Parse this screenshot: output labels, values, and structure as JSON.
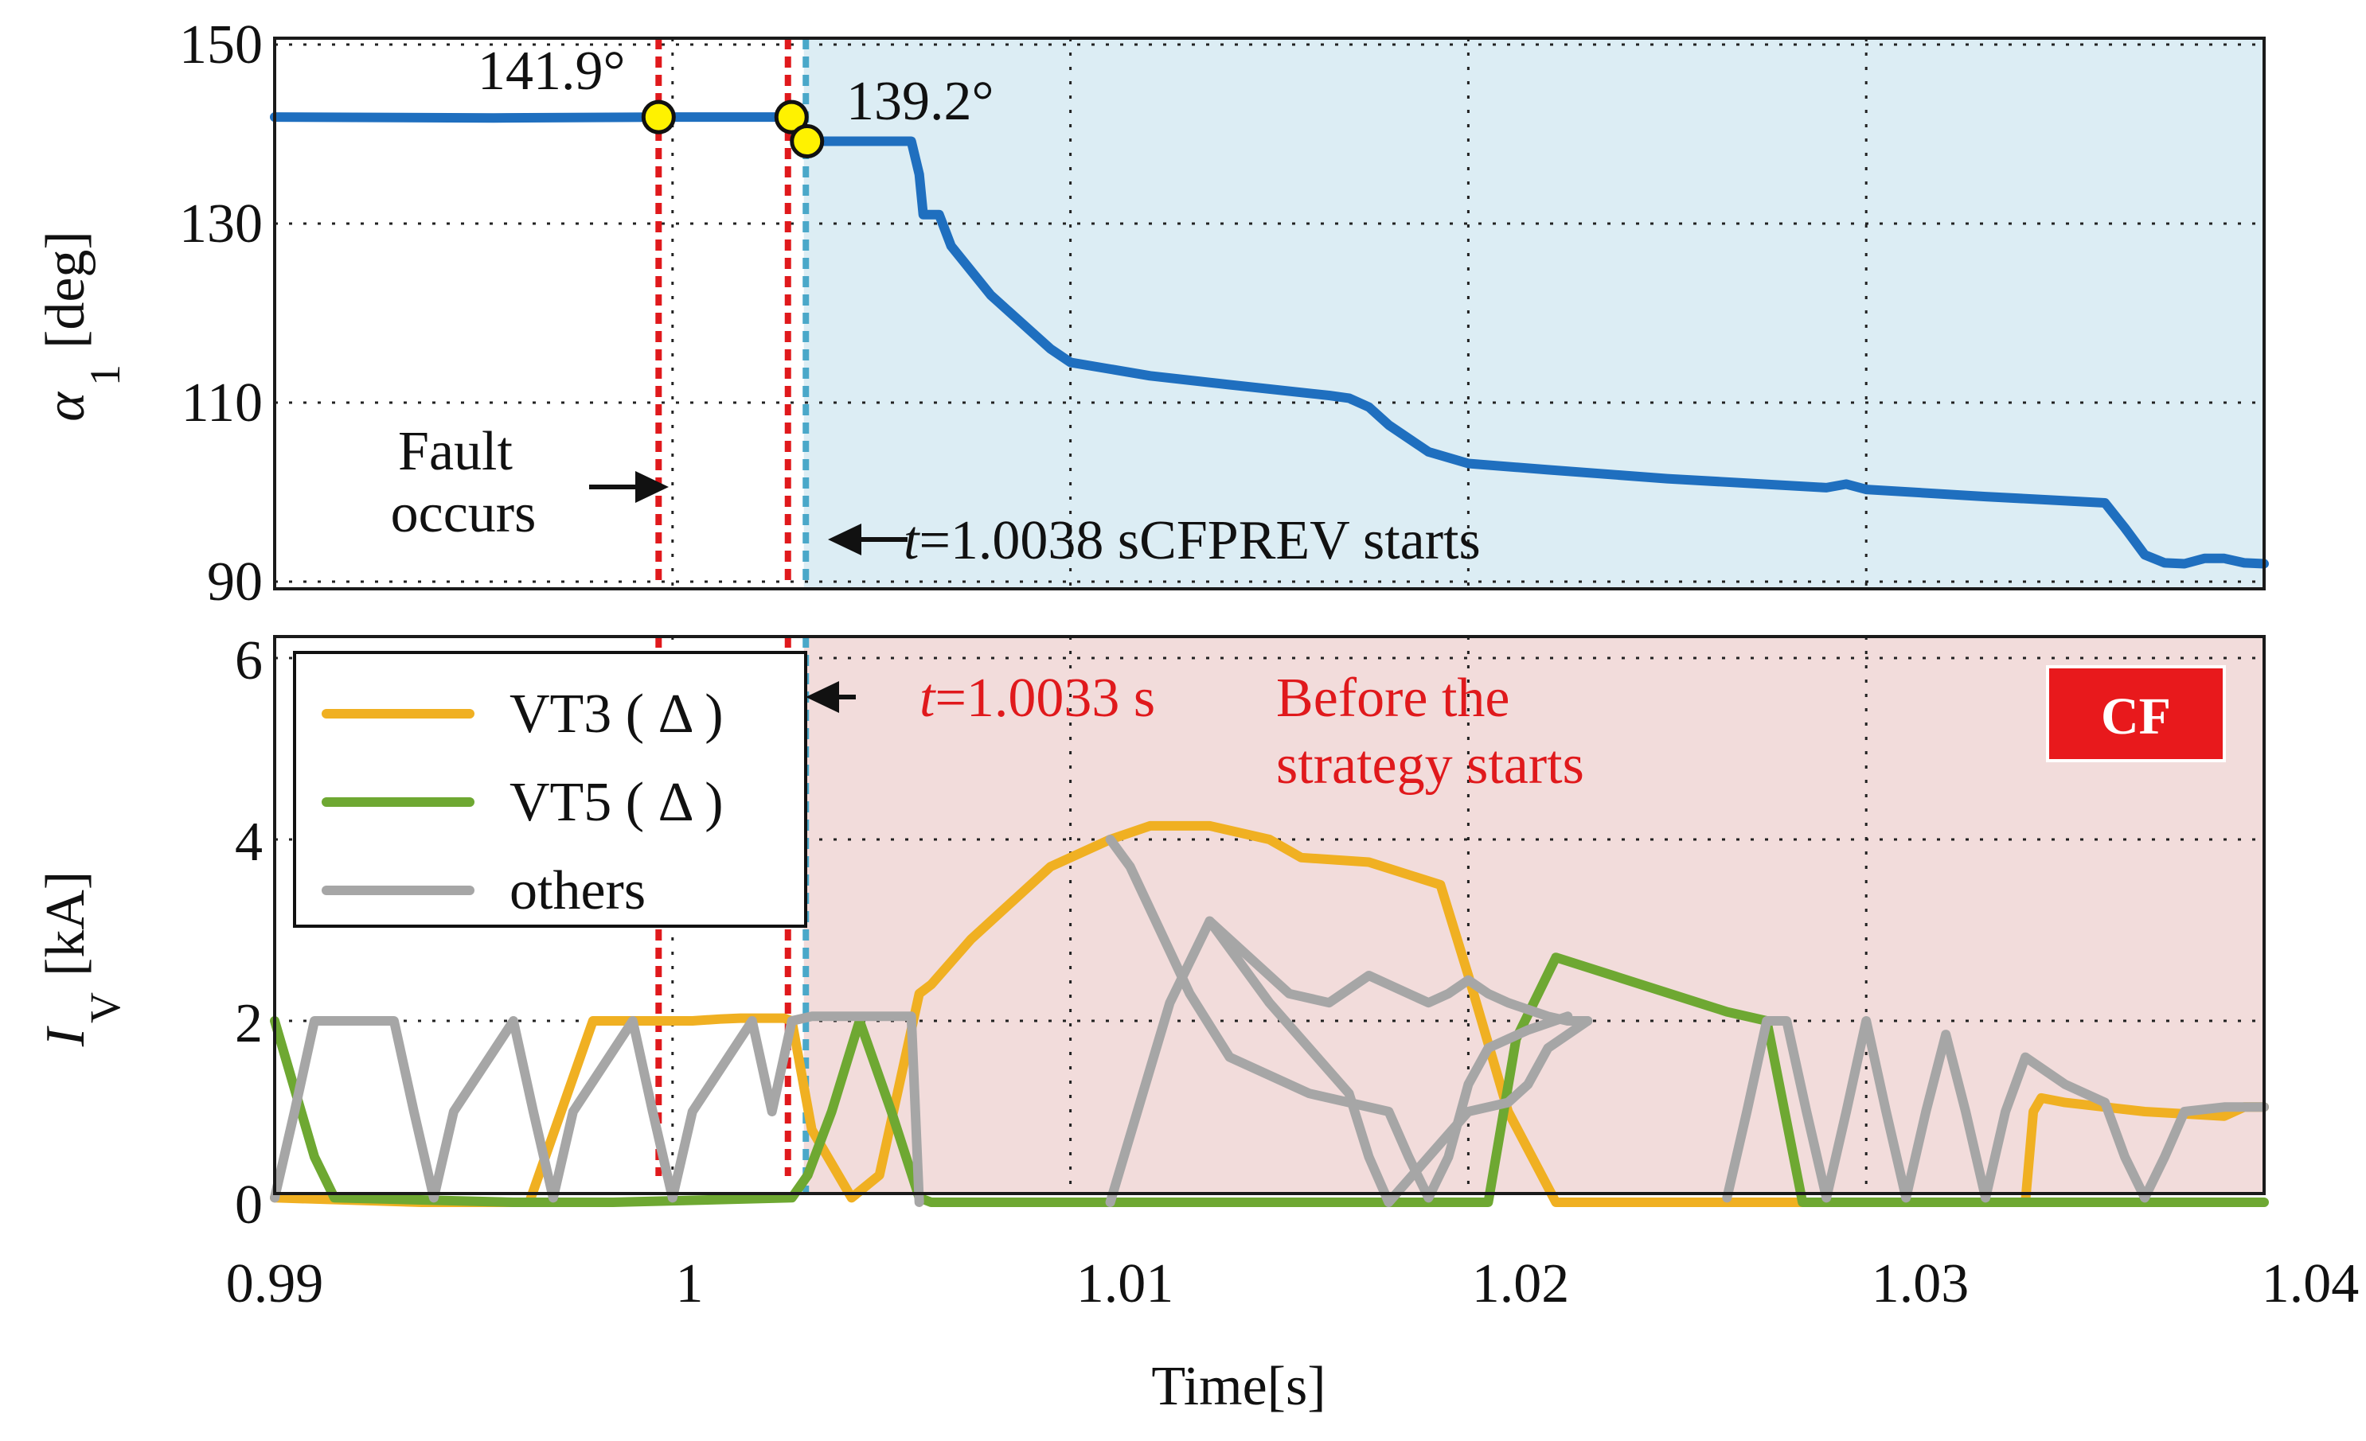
{
  "chart_data": [
    {
      "type": "line",
      "ylabel_main": "α",
      "ylabel_sub": "1",
      "ylabel_unit": "[deg]",
      "xlim": [
        0.99,
        1.04
      ],
      "ylim": [
        88,
        150
      ],
      "yticks": [
        "150",
        "130",
        "110",
        "90"
      ],
      "ytick_values": [
        150,
        130,
        110,
        90
      ],
      "xgrid": [
        1.0,
        1.01,
        1.02,
        1.03
      ],
      "shaded_region": {
        "from": 1.0033,
        "to": 1.04,
        "color": "#dcedf4"
      },
      "series": [
        {
          "color": "#1f6fbf",
          "x": [
            0.99,
            0.9955,
            1.0,
            1.003,
            1.0035,
            1.006,
            1.0062,
            1.0063,
            1.0065,
            1.0067,
            1.007,
            1.008,
            1.009,
            1.0095,
            1.01,
            1.012,
            1.014,
            1.0165,
            1.017,
            1.0175,
            1.018,
            1.019,
            1.02,
            1.022,
            1.025,
            1.029,
            1.0295,
            1.03,
            1.033,
            1.036,
            1.0365,
            1.037,
            1.0375,
            1.038,
            1.0385,
            1.039,
            1.0395,
            1.04
          ],
          "y": [
            141.9,
            141.8,
            141.9,
            141.9,
            139.2,
            139.2,
            135.5,
            131.0,
            131.0,
            131.0,
            127.5,
            122.0,
            118.0,
            116.0,
            114.5,
            113.0,
            112.0,
            110.8,
            110.5,
            109.5,
            107.5,
            104.5,
            103.2,
            102.5,
            101.5,
            100.5,
            100.9,
            100.3,
            99.5,
            98.8,
            96.0,
            93.0,
            92.1,
            92.0,
            92.6,
            92.6,
            92.1,
            92.0
          ]
        }
      ],
      "markers": [
        {
          "x": 0.99965,
          "y": 141.9,
          "label": "141.9°"
        },
        {
          "x": 1.00299,
          "y": 141.9,
          "label": ""
        },
        {
          "x": 1.00338,
          "y": 139.2,
          "label": "139.2°"
        }
      ],
      "vlines": [
        {
          "x": 0.99965,
          "color": "#e0191c"
        },
        {
          "x": 1.0029,
          "color": "#e0191c"
        },
        {
          "x": 1.00335,
          "color": "#4aa8c9"
        }
      ],
      "annotations": [
        {
          "line1": "Fault",
          "line2": "occurs"
        },
        {
          "t_italic": "t",
          "t_rest": "=1.0038 s",
          "label": "CFPREV starts"
        }
      ]
    },
    {
      "type": "line",
      "ylabel_main": "I",
      "ylabel_sub": "V",
      "ylabel_unit": "[kA]",
      "xlabel": "Time[s]",
      "xlim": [
        0.99,
        1.04
      ],
      "ylim": [
        0,
        6.2
      ],
      "yticks": [
        "6",
        "4",
        "2",
        "0"
      ],
      "ytick_values": [
        6,
        4,
        2,
        0
      ],
      "xticks": [
        "0.99",
        "1",
        "1.01",
        "1.02",
        "1.03",
        "1.04"
      ],
      "xtick_values": [
        0.99,
        1.0,
        1.01,
        1.02,
        1.03,
        1.04
      ],
      "xgrid": [
        1.0,
        1.01,
        1.02,
        1.03
      ],
      "shaded_region": {
        "from": 1.0033,
        "to": 1.04,
        "color": "#f2dcdb"
      },
      "badge": {
        "text": "CF",
        "color": "#e8191c"
      },
      "series": [
        {
          "name": "VT3 ( Δ )",
          "color": "#f0b022",
          "x": [
            0.99,
            0.9937,
            0.9964,
            0.9972,
            0.998,
            1.0005,
            1.0012,
            1.0017,
            1.0028,
            1.003,
            1.0035,
            1.0045,
            1.0052,
            1.0062,
            1.0065,
            1.0075,
            1.0085,
            1.0095,
            1.011,
            1.012,
            1.0135,
            1.015,
            1.0158,
            1.0175,
            1.0193,
            1.02,
            1.021,
            1.0222,
            1.025,
            1.03,
            1.034,
            1.0342,
            1.0344,
            1.035,
            1.037,
            1.039,
            1.0395,
            1.04
          ],
          "y": [
            0.05,
            0.0,
            0.0,
            1.0,
            2.0,
            2.0,
            2.02,
            2.03,
            2.03,
            2.0,
            0.8,
            0.05,
            0.3,
            2.3,
            2.4,
            2.9,
            3.3,
            3.7,
            4.0,
            4.15,
            4.15,
            4.0,
            3.8,
            3.75,
            3.5,
            2.5,
            1.0,
            0.0,
            0.0,
            0.0,
            0.0,
            1.0,
            1.15,
            1.1,
            1.0,
            0.95,
            1.05,
            1.05
          ]
        },
        {
          "name": "VT5 ( Δ )",
          "color": "#6ea832",
          "x": [
            0.99,
            0.991,
            0.9915,
            0.996,
            0.9985,
            1.003,
            1.0034,
            1.004,
            1.0047,
            1.0055,
            1.0062,
            1.0065,
            1.0205,
            1.0212,
            1.0222,
            1.0265,
            1.0275,
            1.0284,
            1.0285,
            1.04
          ],
          "y": [
            2.0,
            0.5,
            0.05,
            0.0,
            0.0,
            0.05,
            0.3,
            1.0,
            2.0,
            1.0,
            0.05,
            0.0,
            0.0,
            1.8,
            2.7,
            2.1,
            2.0,
            0.0,
            0.0,
            0.0
          ]
        },
        {
          "name": "others",
          "color": "#a6a6a6",
          "x": [
            0.99,
            0.9905,
            0.991,
            0.9915,
            0.993,
            0.9935,
            0.994,
            0.9945,
            0.996,
            0.9965,
            0.997,
            0.9975,
            0.999,
            0.9995,
            1.0,
            1.0005,
            1.002,
            1.0025,
            1.003,
            1.0035,
            1.006,
            1.0062
          ],
          "y": [
            0.05,
            1.0,
            2.0,
            2.0,
            2.0,
            1.0,
            0.05,
            1.0,
            2.0,
            1.0,
            0.05,
            1.0,
            2.0,
            1.0,
            0.05,
            1.0,
            2.0,
            1.0,
            2.0,
            2.05,
            2.05,
            0.0
          ]
        },
        {
          "name": "",
          "color": "#a6a6a6",
          "x": [
            1.011,
            1.0115,
            1.013,
            1.014,
            1.016,
            1.018,
            1.0185,
            1.019,
            1.0195,
            1.02,
            1.0205,
            1.0215,
            1.0225
          ],
          "y": [
            4.0,
            3.7,
            2.3,
            1.6,
            1.2,
            1.0,
            0.5,
            0.05,
            0.5,
            1.3,
            1.7,
            1.9,
            2.05
          ]
        },
        {
          "name": "",
          "color": "#a6a6a6",
          "x": [
            1.011,
            1.0125,
            1.0135,
            1.015,
            1.017,
            1.0175,
            1.018,
            1.019,
            1.02,
            1.021,
            1.0215,
            1.022,
            1.023
          ],
          "y": [
            0.0,
            2.2,
            3.1,
            2.2,
            1.2,
            0.5,
            0.0,
            0.5,
            1.0,
            1.1,
            1.3,
            1.7,
            2.0
          ]
        },
        {
          "name": "",
          "color": "#a6a6a6",
          "x": [
            1.0135,
            1.0155,
            1.0165,
            1.0175,
            1.0185,
            1.019,
            1.0195,
            1.02,
            1.0205,
            1.021,
            1.022,
            1.0225,
            1.023
          ],
          "y": [
            3.1,
            2.3,
            2.2,
            2.5,
            2.3,
            2.2,
            2.3,
            2.45,
            2.3,
            2.2,
            2.05,
            2.0,
            2.0
          ]
        },
        {
          "name": "",
          "color": "#a6a6a6",
          "x": [
            1.0265,
            1.027,
            1.0275,
            1.028,
            1.0285,
            1.029,
            1.0295,
            1.03,
            1.0305,
            1.031,
            1.0315,
            1.032,
            1.0325,
            1.033,
            1.0335,
            1.034,
            1.035,
            1.036,
            1.0365,
            1.037,
            1.0375,
            1.038,
            1.039,
            1.04
          ],
          "y": [
            0.05,
            1.0,
            2.0,
            2.0,
            1.0,
            0.05,
            1.0,
            2.0,
            1.0,
            0.05,
            1.0,
            1.85,
            1.0,
            0.05,
            1.0,
            1.6,
            1.3,
            1.1,
            0.5,
            0.05,
            0.5,
            1.0,
            1.05,
            1.05
          ]
        }
      ],
      "legend": {
        "placement": "top-left"
      },
      "annotations": [
        {
          "t_italic": "t",
          "t_rest": "=1.0033 s",
          "label_line1": "Before the",
          "label_line2": "strategy starts"
        }
      ]
    }
  ]
}
